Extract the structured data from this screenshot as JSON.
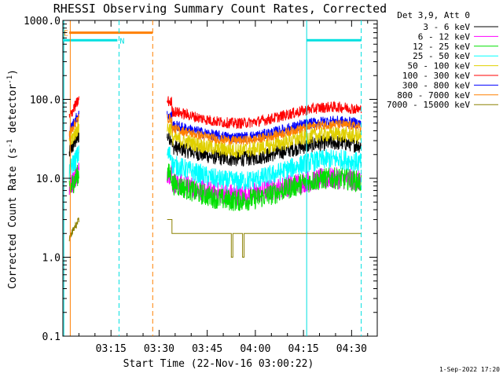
{
  "chart_data": {
    "type": "line",
    "title": "RHESSI Observing Summary Count Rates, Corrected",
    "xlabel": "Start Time (22-Nov-16 03:00:22)",
    "ylabel": "Corrected Count Rate (s",
    "ylabel_sup1": "-1",
    "ylabel_mid": " detector",
    "ylabel_sup2": "-1",
    "ylabel_end": ")",
    "yscale": "log",
    "ylim": [
      0.1,
      1000
    ],
    "y_ticks": [
      {
        "value": 0.1,
        "label": "0.1"
      },
      {
        "value": 1,
        "label": "1.0"
      },
      {
        "value": 10,
        "label": "10.0"
      },
      {
        "value": 100,
        "label": "100.0"
      },
      {
        "value": 1000,
        "label": "1000.0"
      }
    ],
    "xlim_minutes": [
      0,
      98
    ],
    "x_ticks": [
      {
        "value": 15,
        "label": "03:15"
      },
      {
        "value": 30,
        "label": "03:30"
      },
      {
        "value": 45,
        "label": "03:45"
      },
      {
        "value": 60,
        "label": "04:00"
      },
      {
        "value": 75,
        "label": "04:15"
      },
      {
        "value": 90,
        "label": "04:30"
      }
    ],
    "legend_header": "Det 3,9, Att 0",
    "legend_position": "right",
    "series": [
      {
        "name": "3 - 6 keV",
        "color": "#000000",
        "level": 24,
        "amp": 0.16,
        "noise": 0.1
      },
      {
        "name": "6 - 12 keV",
        "color": "#ff00ff",
        "level": 8.5,
        "amp": 0.16,
        "noise": 0.14
      },
      {
        "name": "12 - 25 keV",
        "color": "#00e000",
        "level": 8.0,
        "amp": 0.22,
        "noise": 0.14
      },
      {
        "name": "25 - 50 keV",
        "color": "#00ffff",
        "level": 14,
        "amp": 0.22,
        "noise": 0.13
      },
      {
        "name": "50 - 100 keV",
        "color": "#e0d000",
        "level": 31,
        "amp": 0.16,
        "noise": 0.1
      },
      {
        "name": "100 - 300 keV",
        "color": "#ff0000",
        "level": 68,
        "amp": 0.16,
        "noise": 0.07
      },
      {
        "name": "300 - 800 keV",
        "color": "#0000ff",
        "level": 45,
        "amp": 0.16,
        "noise": 0.07
      },
      {
        "name": "800 - 7000 keV",
        "color": "#ff8000",
        "level": 41,
        "amp": 0.16,
        "noise": 0.06
      },
      {
        "name": "7000 - 15000 keV",
        "color": "#8b8000",
        "level": 2.0,
        "amp": 0.1,
        "noise": 0.05
      }
    ],
    "segments_minutes": [
      [
        2,
        5
      ],
      [
        32.5,
        93
      ]
    ],
    "flags": [
      {
        "label": "E",
        "color": "#ff8000",
        "start": 2,
        "end": 28,
        "value": 700
      },
      {
        "label": "N",
        "color": "#00e0e0",
        "start": 0,
        "end": 17,
        "value": 560
      },
      {
        "label": "",
        "color": "#00e0e0",
        "start": 76,
        "end": 93,
        "value": 560
      }
    ],
    "vlines": [
      {
        "x": 0.3,
        "color": "#00e0e0",
        "dash": false
      },
      {
        "x": 2.3,
        "color": "#ff8000",
        "dash": false
      },
      {
        "x": 17.5,
        "color": "#00e0e0",
        "dash": true
      },
      {
        "x": 28,
        "color": "#ff8000",
        "dash": true
      },
      {
        "x": 76,
        "color": "#00e0e0",
        "dash": false
      },
      {
        "x": 93,
        "color": "#00e0e0",
        "dash": true
      }
    ]
  },
  "timestamp": "1-Sep-2022 17:20"
}
